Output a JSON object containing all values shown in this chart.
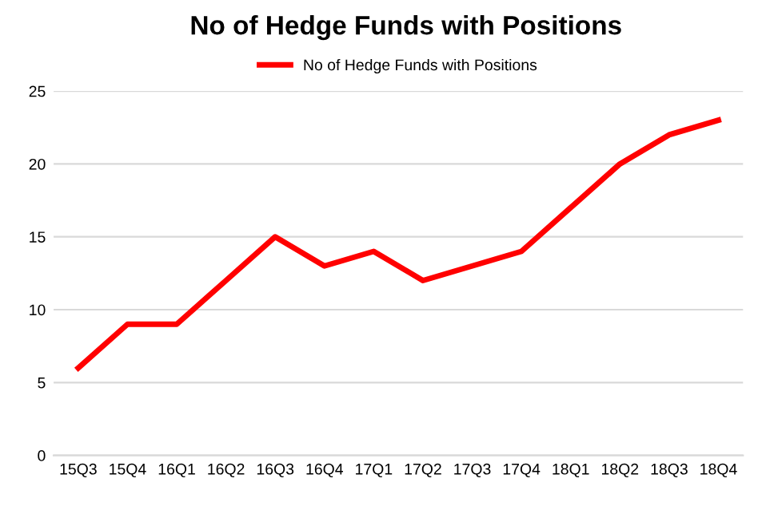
{
  "chart_data": {
    "type": "line",
    "title": "No of Hedge Funds with Positions",
    "categories": [
      "15Q3",
      "15Q4",
      "16Q1",
      "16Q2",
      "16Q3",
      "16Q4",
      "17Q1",
      "17Q2",
      "17Q3",
      "17Q4",
      "18Q1",
      "18Q2",
      "18Q3",
      "18Q4"
    ],
    "series": [
      {
        "name": "No of Hedge Funds with Positions",
        "color": "#ff0000",
        "values": [
          6,
          9,
          9,
          12,
          15,
          13,
          14,
          12,
          13,
          14,
          17,
          20,
          22,
          23
        ]
      }
    ],
    "ylim": [
      0,
      25
    ],
    "yticks": [
      0,
      5,
      10,
      15,
      20,
      25
    ],
    "grid": "y",
    "legend": "top",
    "marker": "none",
    "line_style": "solid"
  }
}
